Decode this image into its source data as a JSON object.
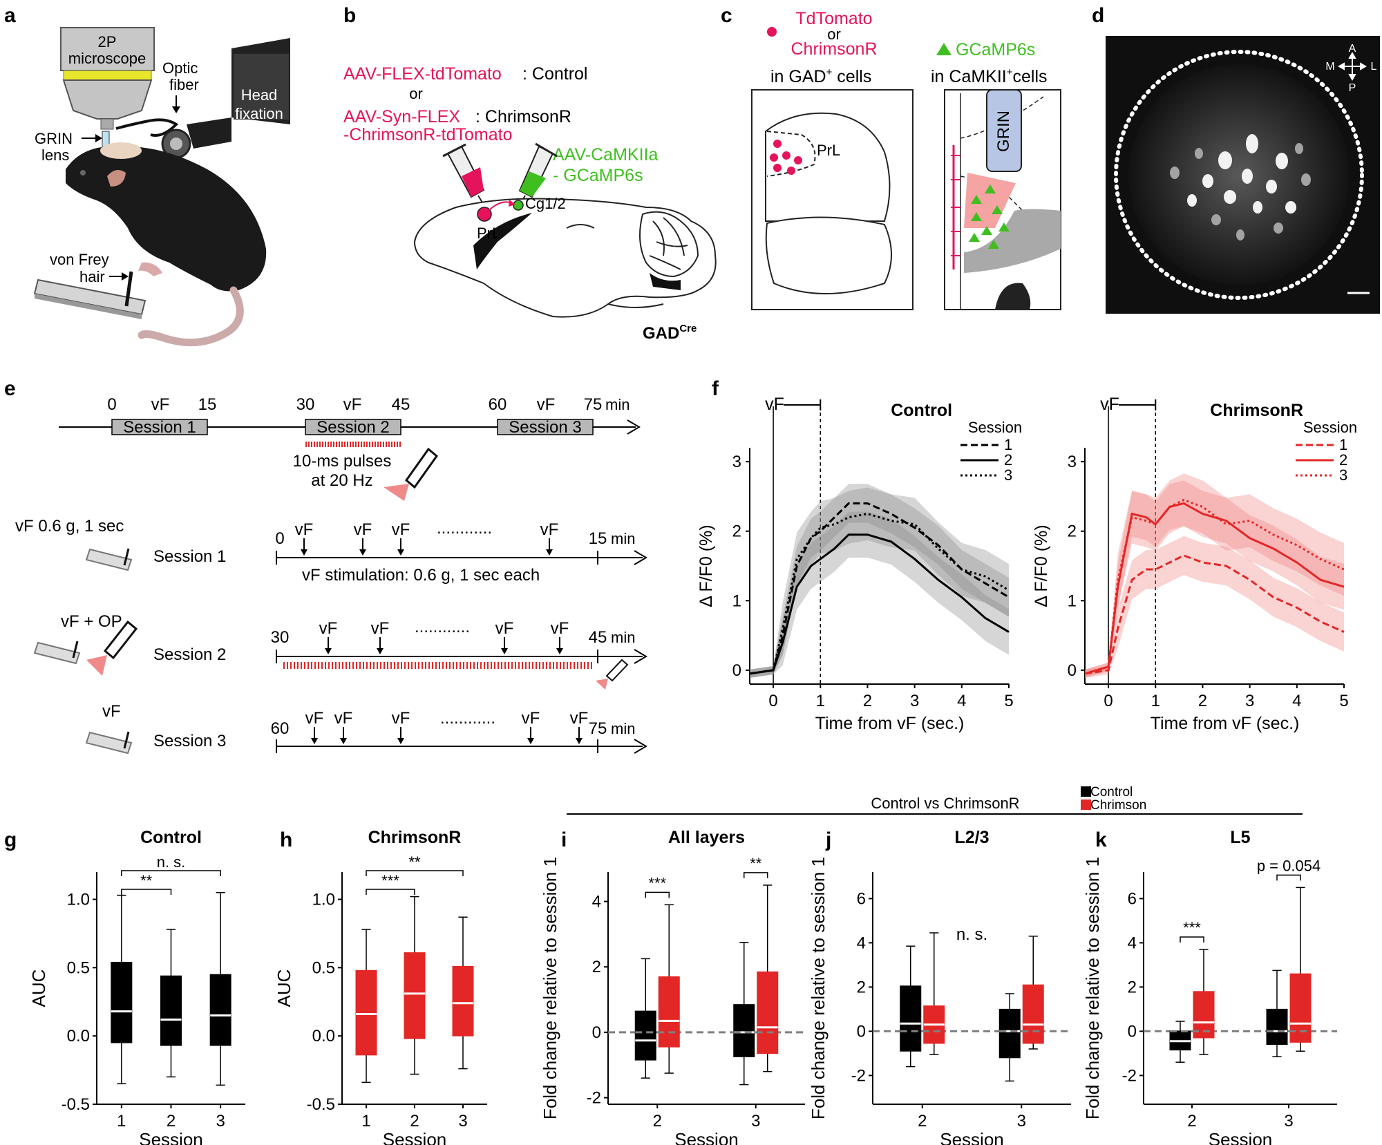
{
  "panel_labels": [
    "a",
    "b",
    "c",
    "d",
    "e",
    "f",
    "g",
    "h",
    "i",
    "j",
    "k"
  ],
  "panel_a": {
    "microscope": [
      "2P",
      "microscope"
    ],
    "optic_fiber": [
      "Optic",
      "fiber"
    ],
    "head_fixation": [
      "Head",
      "fixation"
    ],
    "grin_lens": [
      "GRIN",
      "lens"
    ],
    "von_frey": [
      "von Frey",
      "hair"
    ]
  },
  "panel_b": {
    "virus1_red": "AAV-FLEX-tdTomato",
    "virus1_black": ": Control",
    "or": "or",
    "virus2_red": "AAV-Syn-FLEX",
    "virus2_black": ": ChrimsonR",
    "virus2_line2": "-ChrimsonR-tdTomato",
    "green_line1": "AAV-CaMKIIa",
    "green_line2": "- GCaMP6s",
    "region_prl": "PrL",
    "region_cg": "Cg1/2",
    "genotype": "GAD",
    "genotype_sup": "Cre"
  },
  "panel_c": {
    "red_line1": "TdTomato",
    "or": "or",
    "red_line2": "ChrimsonR",
    "gad_text": "in GAD",
    "gad_sup": "+",
    "gad_suffix": " cells",
    "green_label": "GCaMP6s",
    "camk_text": "in CaMKII",
    "camk_sup": "+",
    "camk_suffix": "cells",
    "prl": "PrL",
    "grin": "GRIN"
  },
  "panel_d": {
    "compass": {
      "a": "A",
      "p": "P",
      "m": "M",
      "l": "L"
    }
  },
  "panel_e": {
    "timeline": {
      "ticks": [
        "0",
        "15",
        "30",
        "45",
        "60",
        "75"
      ],
      "vf": "vF",
      "unit": "min",
      "sessions": [
        "Session 1",
        "Session 2",
        "Session 3"
      ],
      "pulse_text": [
        "10-ms pulses",
        "at 20 Hz"
      ]
    },
    "rows": [
      {
        "cond": "vF  0.6 g, 1 sec",
        "session": "Session 1",
        "start": "0",
        "end": "15",
        "unit": "min",
        "note": "vF stimulation: 0.6 g, 1 sec each",
        "dots": "............"
      },
      {
        "cond": "vF + OP",
        "session": "Session 2",
        "start": "30",
        "end": "45",
        "unit": "min",
        "dots": "............"
      },
      {
        "cond": "vF",
        "session": "Session 3",
        "start": "60",
        "end": "75",
        "unit": "min",
        "dots": "............"
      }
    ]
  },
  "colors": {
    "red": "#e8163a",
    "magenta": "#e5135c",
    "green": "#3fbf1f",
    "box_red": "#e32726",
    "black": "#000000",
    "grey_band": "#9a9a9a",
    "pink_band": "#f5a3a3",
    "lens_blue": "#b7c6e4",
    "gray_tissue": "#a9a9a9"
  },
  "chart_data": [
    {
      "id": "f-control",
      "type": "line",
      "title": "Control",
      "xlabel": "Time from vF (sec.)",
      "ylabel": "Δ F/F0 (%)",
      "xlim": [
        -0.5,
        5
      ],
      "ylim": [
        -0.2,
        3.2
      ],
      "xticks": [
        0,
        1,
        2,
        3,
        4,
        5
      ],
      "yticks": [
        0,
        1,
        2,
        3
      ],
      "stim_label": "vF",
      "legend_title": "Session",
      "series": [
        {
          "name": "1",
          "style": "dashed",
          "x": [
            -0.5,
            0,
            0.2,
            0.5,
            0.8,
            1.0,
            1.3,
            1.6,
            2.0,
            2.5,
            3.0,
            3.5,
            4.0,
            4.5,
            5.0
          ],
          "y": [
            -0.05,
            0.0,
            0.5,
            1.5,
            1.9,
            2.0,
            2.2,
            2.4,
            2.4,
            2.25,
            2.05,
            1.8,
            1.45,
            1.25,
            1.05
          ]
        },
        {
          "name": "2",
          "style": "solid",
          "x": [
            -0.5,
            0,
            0.2,
            0.5,
            0.8,
            1.0,
            1.3,
            1.6,
            2.0,
            2.5,
            3.0,
            3.5,
            4.0,
            4.5,
            5.0
          ],
          "y": [
            -0.05,
            0.0,
            0.4,
            1.2,
            1.5,
            1.6,
            1.75,
            1.95,
            1.95,
            1.85,
            1.6,
            1.3,
            1.05,
            0.75,
            0.55
          ]
        },
        {
          "name": "3",
          "style": "dotted",
          "x": [
            -0.5,
            0,
            0.2,
            0.5,
            0.8,
            1.0,
            1.3,
            1.6,
            2.0,
            2.5,
            3.0,
            3.5,
            4.0,
            4.5,
            5.0
          ],
          "y": [
            -0.05,
            0.0,
            0.6,
            1.6,
            1.9,
            2.05,
            2.1,
            2.2,
            2.25,
            2.15,
            2.1,
            1.75,
            1.45,
            1.35,
            1.15
          ]
        }
      ]
    },
    {
      "id": "f-chrimson",
      "type": "line",
      "title": "ChrimsonR",
      "xlabel": "Time from vF (sec.)",
      "ylabel": "Δ F/F0 (%)",
      "xlim": [
        -0.5,
        5
      ],
      "ylim": [
        -0.2,
        3.2
      ],
      "xticks": [
        0,
        1,
        2,
        3,
        4,
        5
      ],
      "yticks": [
        0,
        1,
        2,
        3
      ],
      "stim_label": "vF",
      "legend_title": "Session",
      "series": [
        {
          "name": "1",
          "style": "dashed",
          "x": [
            -0.5,
            0,
            0.2,
            0.5,
            0.8,
            1.0,
            1.3,
            1.6,
            2.0,
            2.5,
            3.0,
            3.5,
            4.0,
            4.5,
            5.0
          ],
          "y": [
            -0.05,
            0.0,
            0.6,
            1.3,
            1.45,
            1.45,
            1.55,
            1.65,
            1.55,
            1.5,
            1.3,
            1.05,
            0.9,
            0.7,
            0.55
          ]
        },
        {
          "name": "2",
          "style": "solid",
          "x": [
            -0.5,
            0,
            0.2,
            0.5,
            0.8,
            1.0,
            1.3,
            1.6,
            2.0,
            2.5,
            3.0,
            3.5,
            4.0,
            4.5,
            5.0
          ],
          "y": [
            -0.05,
            0.05,
            1.2,
            2.25,
            2.2,
            2.1,
            2.35,
            2.4,
            2.25,
            2.15,
            1.9,
            1.75,
            1.55,
            1.3,
            1.2
          ]
        },
        {
          "name": "3",
          "style": "dotted",
          "x": [
            -0.5,
            0,
            0.2,
            0.5,
            0.8,
            1.0,
            1.3,
            1.6,
            2.0,
            2.5,
            3.0,
            3.5,
            4.0,
            4.5,
            5.0
          ],
          "y": [
            -0.05,
            0.05,
            1.3,
            2.2,
            2.15,
            2.1,
            2.35,
            2.45,
            2.35,
            2.1,
            2.15,
            1.95,
            1.8,
            1.6,
            1.45
          ]
        }
      ]
    },
    {
      "id": "g",
      "type": "box",
      "title": "Control",
      "xlabel": "Session",
      "ylabel": "AUC",
      "categories": [
        "1",
        "2",
        "3"
      ],
      "yticks": [
        -0.5,
        0.0,
        0.5,
        1.0
      ],
      "ytick_labels": [
        "-0.5",
        "0.0",
        "0.5",
        "1.0"
      ],
      "ylim": [
        -0.5,
        1.2
      ],
      "boxes": [
        {
          "min": -0.35,
          "q1": -0.05,
          "median": 0.18,
          "q3": 0.54,
          "max": 1.03,
          "color": "#000000"
        },
        {
          "min": -0.3,
          "q1": -0.07,
          "median": 0.12,
          "q3": 0.44,
          "max": 0.78,
          "color": "#000000"
        },
        {
          "min": -0.36,
          "q1": -0.07,
          "median": 0.15,
          "q3": 0.45,
          "max": 1.05,
          "color": "#000000"
        }
      ],
      "comparisons": [
        {
          "from": 0,
          "to": 1,
          "label": "**"
        },
        {
          "from": 0,
          "to": 2,
          "label": "n. s."
        }
      ]
    },
    {
      "id": "h",
      "type": "box",
      "title": "ChrimsonR",
      "xlabel": "Session",
      "ylabel": "AUC",
      "categories": [
        "1",
        "2",
        "3"
      ],
      "yticks": [
        -0.5,
        0.0,
        0.5,
        1.0
      ],
      "ytick_labels": [
        "-0.5",
        "0.0",
        "0.5",
        "1.0"
      ],
      "ylim": [
        -0.5,
        1.2
      ],
      "boxes": [
        {
          "min": -0.34,
          "q1": -0.14,
          "median": 0.16,
          "q3": 0.48,
          "max": 0.78,
          "color": "#e32726"
        },
        {
          "min": -0.28,
          "q1": -0.02,
          "median": 0.31,
          "q3": 0.61,
          "max": 1.02,
          "color": "#e32726"
        },
        {
          "min": -0.24,
          "q1": 0.0,
          "median": 0.24,
          "q3": 0.51,
          "max": 0.87,
          "color": "#e32726"
        }
      ],
      "comparisons": [
        {
          "from": 0,
          "to": 1,
          "label": "***"
        },
        {
          "from": 0,
          "to": 2,
          "label": "**"
        }
      ]
    },
    {
      "id": "i",
      "type": "box",
      "title": "All layers",
      "xlabel": "Session",
      "ylabel": "Fold change relative to session 1",
      "categories": [
        "2",
        "3"
      ],
      "yticks": [
        -2,
        0,
        2,
        4
      ],
      "ytick_labels": [
        "-2",
        "0",
        "2",
        "4"
      ],
      "ylim": [
        -2.2,
        4.9
      ],
      "groups": [
        [
          {
            "series": "Control",
            "min": -1.4,
            "q1": -0.85,
            "median": -0.25,
            "q3": 0.65,
            "max": 2.25
          },
          {
            "series": "Chrimson",
            "min": -1.25,
            "q1": -0.45,
            "median": 0.35,
            "q3": 1.7,
            "max": 3.9
          }
        ],
        [
          {
            "series": "Control",
            "min": -1.6,
            "q1": -0.75,
            "median": 0.0,
            "q3": 0.85,
            "max": 2.75
          },
          {
            "series": "Chrimson",
            "min": -1.2,
            "q1": -0.65,
            "median": 0.15,
            "q3": 1.85,
            "max": 4.5
          }
        ]
      ],
      "stars": [
        "***",
        "**"
      ],
      "reference_line": 0
    },
    {
      "id": "j",
      "type": "box",
      "title": "L2/3",
      "xlabel": "Session",
      "ylabel": "Fold change relative to session 1",
      "categories": [
        "2",
        "3"
      ],
      "yticks": [
        -2,
        0,
        2,
        4,
        6
      ],
      "ytick_labels": [
        "-2",
        "0",
        "2",
        "4",
        "6"
      ],
      "ylim": [
        -3.3,
        7.2
      ],
      "groups": [
        [
          {
            "series": "Control",
            "min": -1.6,
            "q1": -0.9,
            "median": 0.35,
            "q3": 2.05,
            "max": 3.85
          },
          {
            "series": "Chrimson",
            "min": -1.05,
            "q1": -0.55,
            "median": 0.3,
            "q3": 1.15,
            "max": 4.45
          }
        ],
        [
          {
            "series": "Control",
            "min": -2.25,
            "q1": -1.2,
            "median": 0.0,
            "q3": 1.0,
            "max": 1.7
          },
          {
            "series": "Chrimson",
            "min": -0.8,
            "q1": -0.55,
            "median": 0.3,
            "q3": 2.1,
            "max": 4.3
          }
        ]
      ],
      "annotation": "n. s.",
      "reference_line": 0
    },
    {
      "id": "k",
      "type": "box",
      "title": "L5",
      "xlabel": "Session",
      "ylabel": "Fold change relative to session 1",
      "categories": [
        "2",
        "3"
      ],
      "yticks": [
        -2,
        0,
        2,
        4,
        6
      ],
      "ytick_labels": [
        "-2",
        "0",
        "2",
        "4",
        "6"
      ],
      "ylim": [
        -3.3,
        7.2
      ],
      "groups": [
        [
          {
            "series": "Control",
            "min": -1.4,
            "q1": -0.85,
            "median": -0.45,
            "q3": 0.0,
            "max": 0.45
          },
          {
            "series": "Chrimson",
            "min": -1.05,
            "q1": -0.3,
            "median": 0.4,
            "q3": 1.8,
            "max": 3.7
          }
        ],
        [
          {
            "series": "Control",
            "min": -1.15,
            "q1": -0.6,
            "median": 0.0,
            "q3": 1.0,
            "max": 2.75
          },
          {
            "series": "Chrimson",
            "min": -0.9,
            "q1": -0.5,
            "median": 0.35,
            "q3": 2.6,
            "max": 6.5
          }
        ]
      ],
      "stars": [
        "***",
        "p = 0.054"
      ],
      "reference_line": 0
    },
    {
      "id": "ijk-header",
      "type": "legend",
      "title": "Control vs ChrimsonR",
      "legend": [
        {
          "name": "Control",
          "color": "#000000"
        },
        {
          "name": "Chrimson",
          "color": "#e32726"
        }
      ]
    }
  ]
}
